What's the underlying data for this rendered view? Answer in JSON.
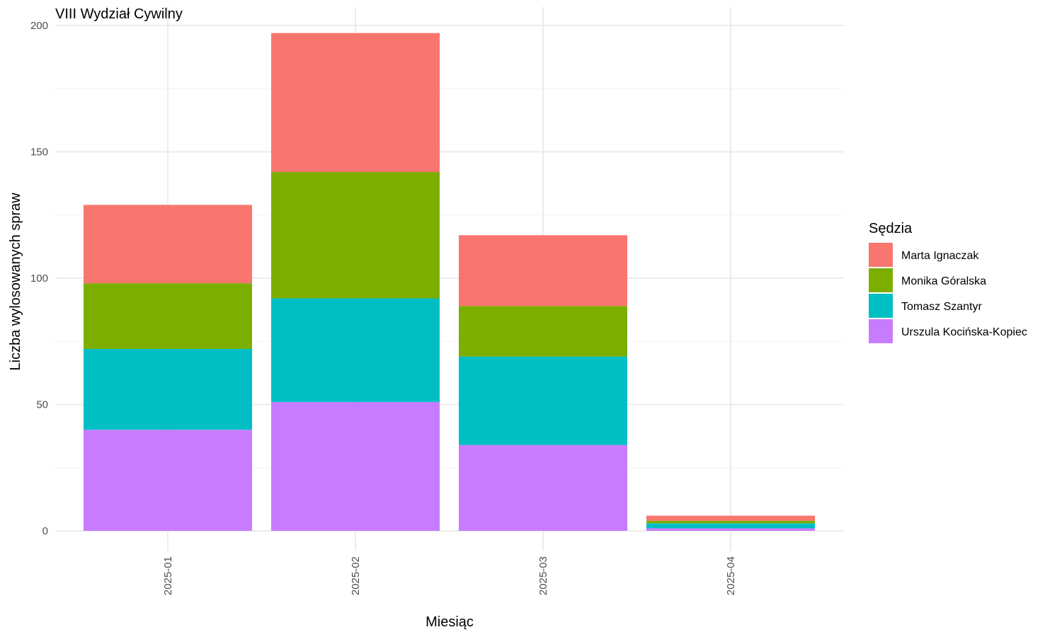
{
  "chart_data": {
    "type": "bar",
    "stacked": true,
    "title": "VIII Wydział Cywilny",
    "xlabel": "Miesiąc",
    "ylabel": "Liczba wylosowanych spraw",
    "categories": [
      "2025-01",
      "2025-02",
      "2025-03",
      "2025-04"
    ],
    "yticks": [
      "0",
      "50",
      "100",
      "150",
      "200"
    ],
    "ylim": [
      0,
      200
    ],
    "grid": true,
    "legend": {
      "title": "Sędzia",
      "position": "right"
    },
    "series": [
      {
        "name": "Marta Ignaczak",
        "color": "#F8766D",
        "values": [
          31,
          55,
          28,
          2
        ]
      },
      {
        "name": "Monika Góralska",
        "color": "#7CAE00",
        "values": [
          26,
          50,
          20,
          1
        ]
      },
      {
        "name": "Tomasz Szantyr",
        "color": "#00BFC4",
        "values": [
          32,
          41,
          35,
          2
        ]
      },
      {
        "name": "Urszula Kocińska-Kopiec",
        "color": "#C77CFF",
        "values": [
          40,
          51,
          34,
          1
        ]
      }
    ]
  }
}
